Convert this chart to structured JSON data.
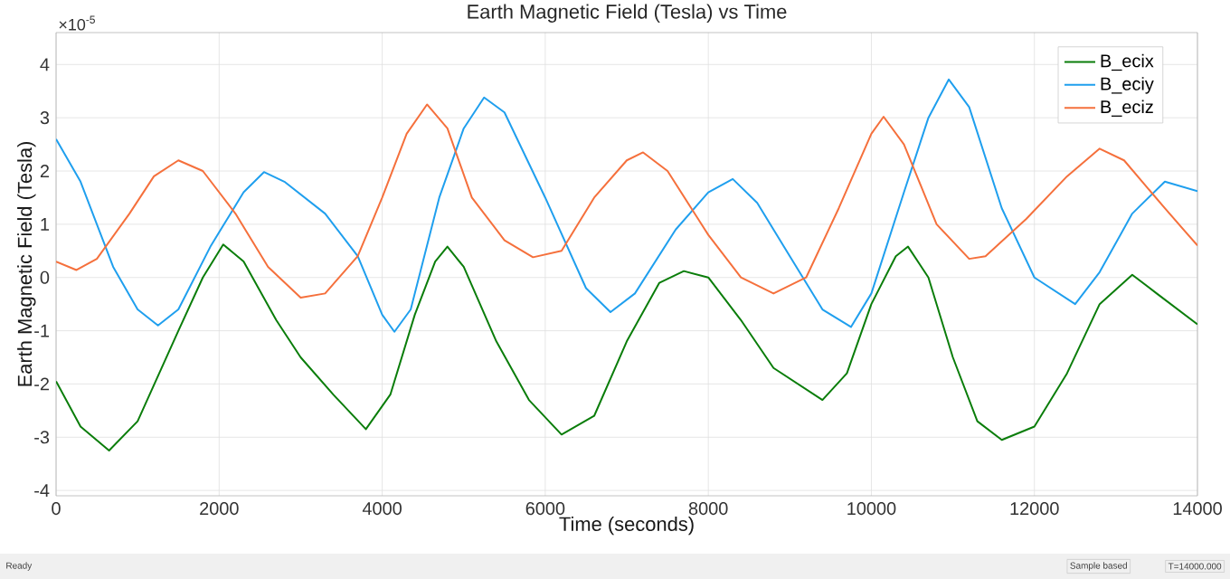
{
  "chart_data": {
    "type": "line",
    "title": "Earth Magnetic Field (Tesla) vs Time",
    "xlabel": "Time (seconds)",
    "ylabel": "Earth Magnetic Field (Tesla)",
    "annotations": [
      "×10$^{-5}$",
      "Ready",
      "Sample based",
      "T=14000.000"
    ],
    "xlim": [
      0,
      14000
    ],
    "ylim": [
      -4.1,
      4.6
    ],
    "xticks": [
      0,
      2000,
      4000,
      6000,
      8000,
      10000,
      12000,
      14000
    ],
    "yticks": [
      -4,
      -3,
      -2,
      -1,
      0,
      1,
      2,
      3,
      4
    ],
    "grid": true,
    "legend": "top right",
    "marker": "none",
    "line_style": "solid",
    "series": [
      {
        "name": "B_ecix",
        "color": "#0a7d0a",
        "x": [
          0,
          300,
          650,
          1000,
          1500,
          1800,
          2050,
          2300,
          2700,
          3000,
          3400,
          3800,
          4100,
          4400,
          4650,
          4800,
          5000,
          5400,
          5800,
          6200,
          6600,
          7000,
          7400,
          7700,
          8000,
          8400,
          8800,
          9400,
          9700,
          10000,
          10300,
          10450,
          10700,
          11000,
          11300,
          11600,
          12000,
          12400,
          12800,
          13200,
          13500,
          14000
        ],
        "values": [
          -1.95,
          -2.8,
          -3.25,
          -2.7,
          -1.0,
          0.0,
          0.62,
          0.3,
          -0.8,
          -1.5,
          -2.2,
          -2.85,
          -2.2,
          -0.7,
          0.3,
          0.58,
          0.2,
          -1.2,
          -2.3,
          -2.95,
          -2.6,
          -1.2,
          -0.1,
          0.12,
          0.0,
          -0.8,
          -1.7,
          -2.3,
          -1.8,
          -0.5,
          0.4,
          0.58,
          0.0,
          -1.5,
          -2.7,
          -3.05,
          -2.8,
          -1.8,
          -0.5,
          0.05,
          -0.3,
          -0.88
        ]
      },
      {
        "name": "B_eciy",
        "color": "#1f9fee",
        "x": [
          0,
          300,
          700,
          1000,
          1250,
          1500,
          1900,
          2300,
          2550,
          2800,
          3300,
          3700,
          4000,
          4150,
          4350,
          4700,
          5000,
          5250,
          5500,
          6000,
          6500,
          6800,
          7100,
          7600,
          8000,
          8300,
          8600,
          9000,
          9400,
          9750,
          10000,
          10400,
          10700,
          10950,
          11200,
          11600,
          12000,
          12500,
          12800,
          13200,
          13600,
          14000
        ],
        "values": [
          2.6,
          1.8,
          0.2,
          -0.6,
          -0.9,
          -0.6,
          0.6,
          1.6,
          1.98,
          1.8,
          1.2,
          0.4,
          -0.7,
          -1.02,
          -0.6,
          1.5,
          2.8,
          3.38,
          3.1,
          1.5,
          -0.2,
          -0.65,
          -0.3,
          0.9,
          1.6,
          1.85,
          1.4,
          0.4,
          -0.6,
          -0.93,
          -0.3,
          1.6,
          3.0,
          3.72,
          3.2,
          1.3,
          0.0,
          -0.5,
          0.1,
          1.2,
          1.8,
          1.62
        ]
      },
      {
        "name": "B_eciz",
        "color": "#f5703c",
        "x": [
          0,
          250,
          500,
          900,
          1200,
          1500,
          1800,
          2200,
          2600,
          3000,
          3300,
          3700,
          4000,
          4300,
          4550,
          4800,
          5100,
          5500,
          5850,
          6200,
          6600,
          7000,
          7200,
          7500,
          8000,
          8400,
          8800,
          9200,
          9600,
          10000,
          10150,
          10400,
          10800,
          11200,
          11400,
          11900,
          12400,
          12800,
          13100,
          13600,
          14000
        ],
        "values": [
          0.3,
          0.14,
          0.35,
          1.2,
          1.9,
          2.2,
          2.0,
          1.2,
          0.2,
          -0.38,
          -0.3,
          0.4,
          1.5,
          2.7,
          3.25,
          2.8,
          1.5,
          0.7,
          0.38,
          0.5,
          1.5,
          2.2,
          2.35,
          2.0,
          0.8,
          0.0,
          -0.3,
          0.0,
          1.3,
          2.7,
          3.02,
          2.5,
          1.0,
          0.35,
          0.4,
          1.1,
          1.9,
          2.42,
          2.2,
          1.3,
          0.6
        ]
      }
    ]
  }
}
